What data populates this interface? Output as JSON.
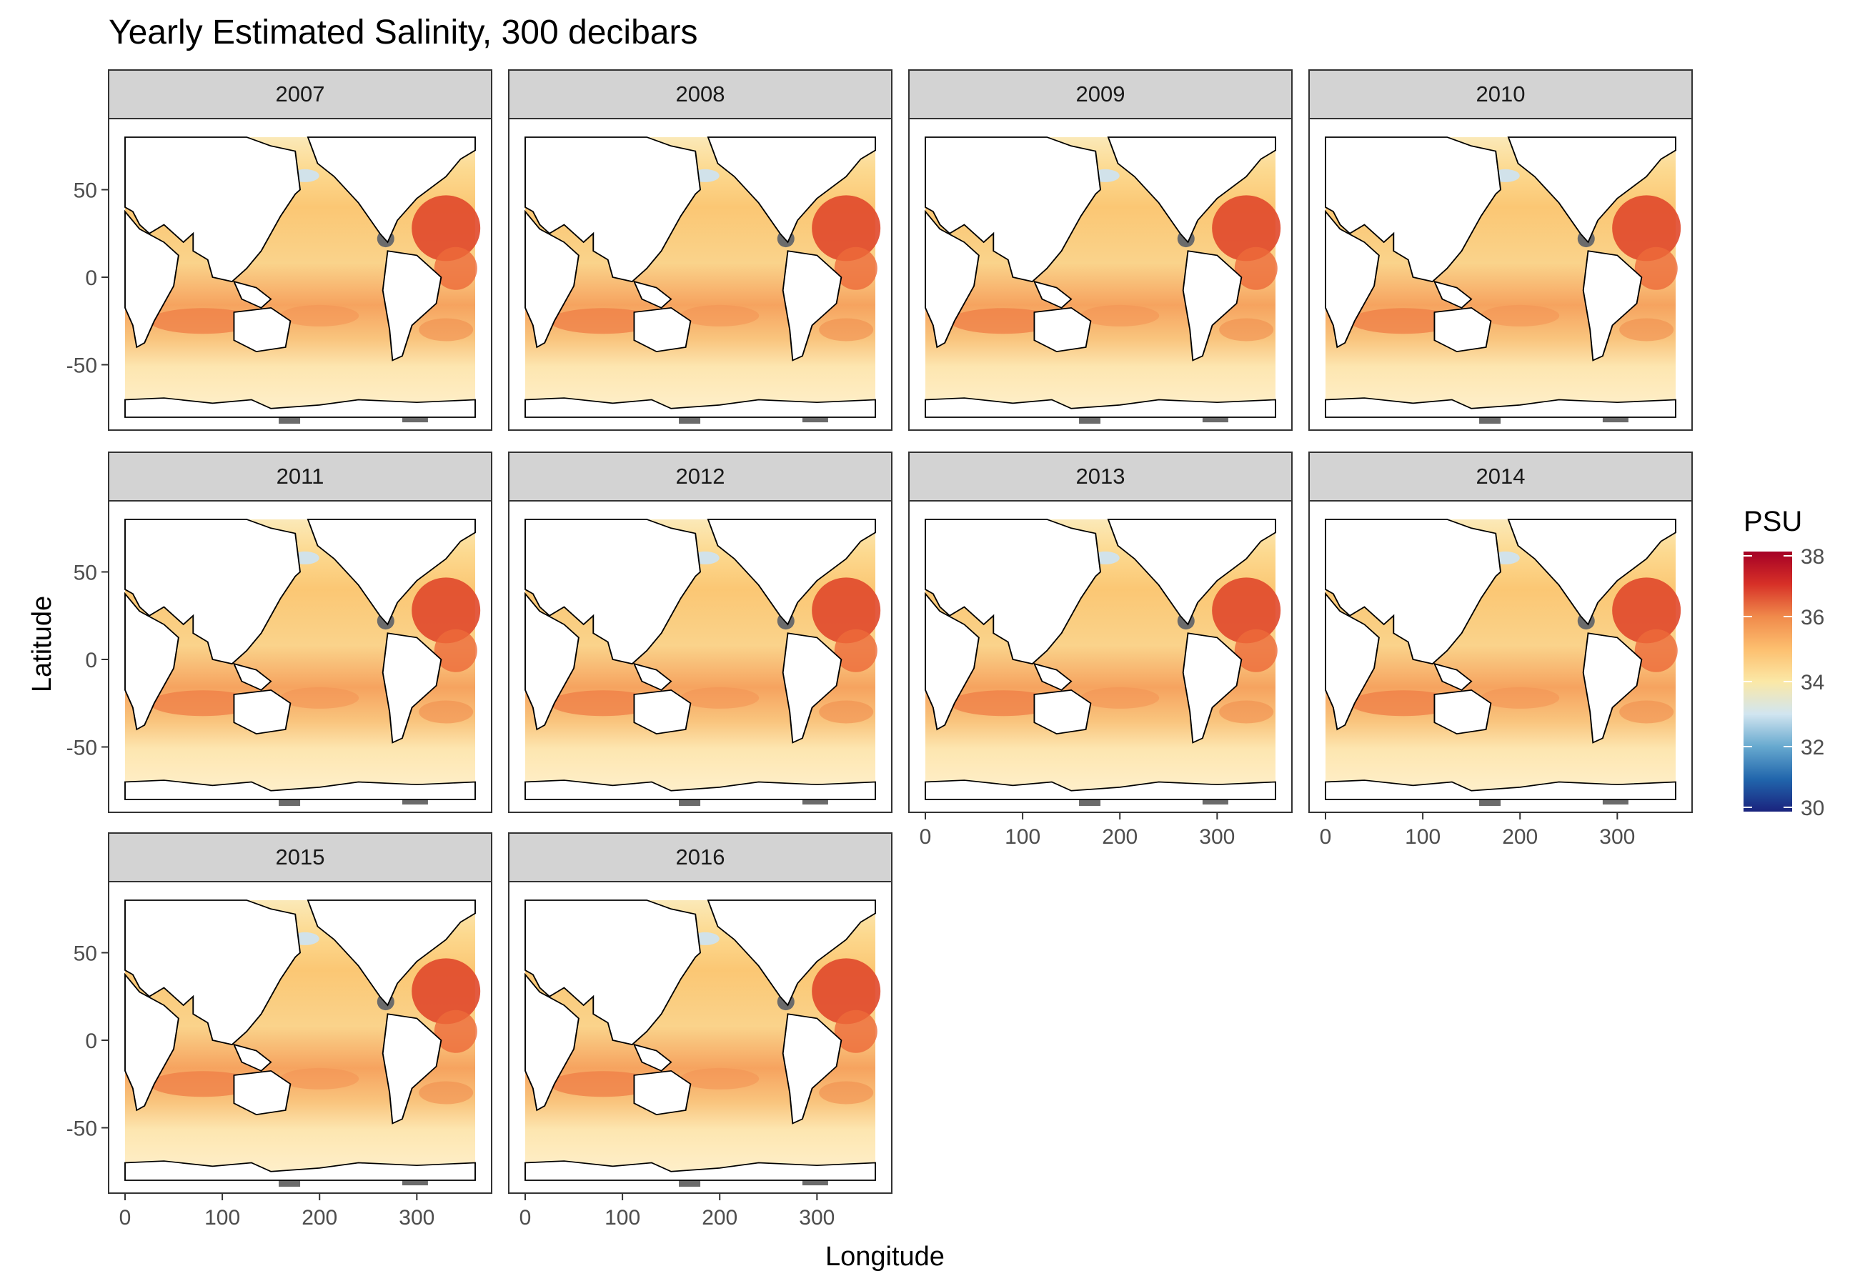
{
  "chart_data": {
    "type": "heatmap",
    "title": "Yearly Estimated Salinity, 300 decibars",
    "xlabel": "Longitude",
    "ylabel": "Latitude",
    "facets": [
      "2007",
      "2008",
      "2009",
      "2010",
      "2011",
      "2012",
      "2013",
      "2014",
      "2015",
      "2016"
    ],
    "facet_layout": {
      "columns": 4,
      "rows": 3
    },
    "xlim": [
      0,
      360
    ],
    "ylim": [
      -80,
      80
    ],
    "x_ticks": [
      0,
      100,
      200,
      300
    ],
    "x_tick_labels": [
      "0",
      "100",
      "200",
      "300"
    ],
    "y_ticks": [
      50,
      0,
      -50
    ],
    "y_tick_labels": [
      "50",
      "0",
      "-50"
    ],
    "grid": false,
    "legend": {
      "title": "PSU",
      "position": "right",
      "range": [
        30,
        38
      ],
      "ticks": [
        38,
        36,
        34,
        32,
        30
      ],
      "tick_labels": [
        "38",
        "36",
        "34",
        "32",
        "30"
      ],
      "colors": [
        "#1a237e",
        "#2166ac",
        "#67a9cf",
        "#d1e5f0",
        "#fbe8a6",
        "#fdbf6f",
        "#f08a4b",
        "#d73027",
        "#a50026"
      ]
    },
    "land_color": "#ffffff",
    "missing_color": "#6b6b6b",
    "strip_color": "#d3d3d3"
  }
}
